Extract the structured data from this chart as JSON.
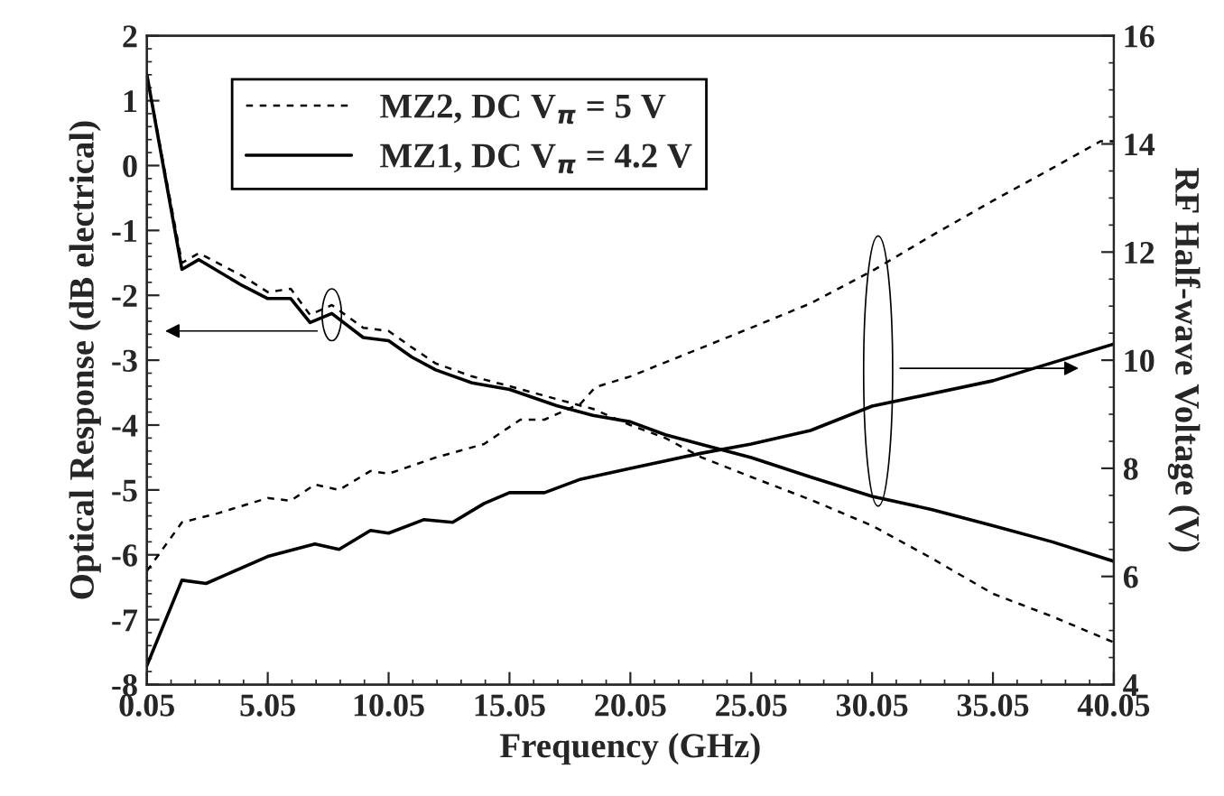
{
  "chart_data": {
    "type": "line",
    "xlabel": "Frequency (GHz)",
    "ylabel": "Optical Response (dB electrical)",
    "y2label": "RF Half-wave Voltage (V)",
    "xlim": [
      0.05,
      40.05
    ],
    "xticks": [
      0.05,
      5.05,
      10.05,
      15.05,
      20.05,
      25.05,
      30.05,
      35.05,
      40.05
    ],
    "ylim": [
      -8,
      2
    ],
    "yticks": [
      -8,
      -7,
      -6,
      -5,
      -4,
      -3,
      -2,
      -1,
      0,
      1,
      2
    ],
    "y2lim": [
      4,
      16
    ],
    "y2ticks": [
      4,
      6,
      8,
      10,
      12,
      14,
      16
    ],
    "legend": "top left",
    "grid": false,
    "series": [
      {
        "name": "MZ2, DC V$_{π}$ = 5 V",
        "color": "#000000",
        "line_style": "dashed",
        "x": [
          0.05,
          1.5,
          2.2,
          4,
          5.05,
          6,
          6.8,
          7.7,
          9,
          10.05,
          11,
          12,
          13.5,
          15.05,
          17,
          18.5,
          20.05,
          21.5,
          23,
          25.05,
          27.5,
          30.05,
          32.5,
          35.05,
          37.5,
          40.05
        ],
        "values": [
          1.4,
          -1.5,
          -1.35,
          -1.7,
          -1.95,
          -1.9,
          -2.3,
          -2.15,
          -2.5,
          -2.55,
          -2.8,
          -3.05,
          -3.25,
          -3.4,
          -3.6,
          -3.75,
          -4.0,
          -4.2,
          -4.5,
          -4.8,
          -5.15,
          -5.55,
          -6.05,
          -6.6,
          -6.95,
          -7.35
        ]
      },
      {
        "name": "MZ1, DC V$_{π}$ = 4.2 V",
        "color": "#000000",
        "line_style": "solid",
        "x": [
          0.05,
          1.5,
          2.2,
          4,
          5.05,
          6,
          6.8,
          7.7,
          9,
          10.05,
          11,
          12,
          13.5,
          15.05,
          17,
          18.5,
          20.05,
          21.5,
          23,
          25.05,
          27.5,
          30.05,
          32.5,
          35.05,
          37.5,
          40.05
        ],
        "values": [
          1.4,
          -1.6,
          -1.45,
          -1.85,
          -2.05,
          -2.05,
          -2.42,
          -2.28,
          -2.65,
          -2.7,
          -2.95,
          -3.15,
          -3.35,
          -3.45,
          -3.7,
          -3.85,
          -3.95,
          -4.15,
          -4.3,
          -4.5,
          -4.8,
          -5.1,
          -5.3,
          -5.55,
          -5.8,
          -6.1
        ]
      },
      {
        "color": "#000000",
        "line_style": "dashed",
        "axis": "y2",
        "x": [
          0.05,
          1.5,
          3,
          5.05,
          6,
          7,
          8,
          9.3,
          10.05,
          12,
          14,
          15.5,
          16.5,
          18,
          18.6,
          20.05,
          22,
          25.05,
          27.5,
          30.05,
          32.5,
          35.05,
          37.5,
          39.5,
          40.05
        ],
        "values": [
          6.1,
          7.0,
          7.17,
          7.45,
          7.4,
          7.7,
          7.6,
          7.95,
          7.9,
          8.2,
          8.45,
          8.9,
          8.9,
          9.2,
          9.5,
          9.7,
          10.05,
          10.6,
          11.05,
          11.65,
          12.3,
          12.95,
          13.55,
          14.05,
          14.05
        ]
      },
      {
        "color": "#000000",
        "line_style": "solid",
        "axis": "y2",
        "x": [
          0.05,
          1.5,
          2.5,
          5.05,
          7,
          8,
          9.3,
          10.05,
          11.5,
          12.7,
          14,
          15.05,
          16.5,
          18,
          20.05,
          23,
          25.05,
          27.5,
          30.05,
          35.05,
          40.05
        ],
        "values": [
          4.35,
          5.93,
          5.87,
          6.37,
          6.6,
          6.5,
          6.85,
          6.8,
          7.05,
          7.0,
          7.35,
          7.55,
          7.55,
          7.8,
          8.0,
          8.28,
          8.45,
          8.7,
          9.15,
          9.62,
          10.3
        ]
      }
    ]
  }
}
